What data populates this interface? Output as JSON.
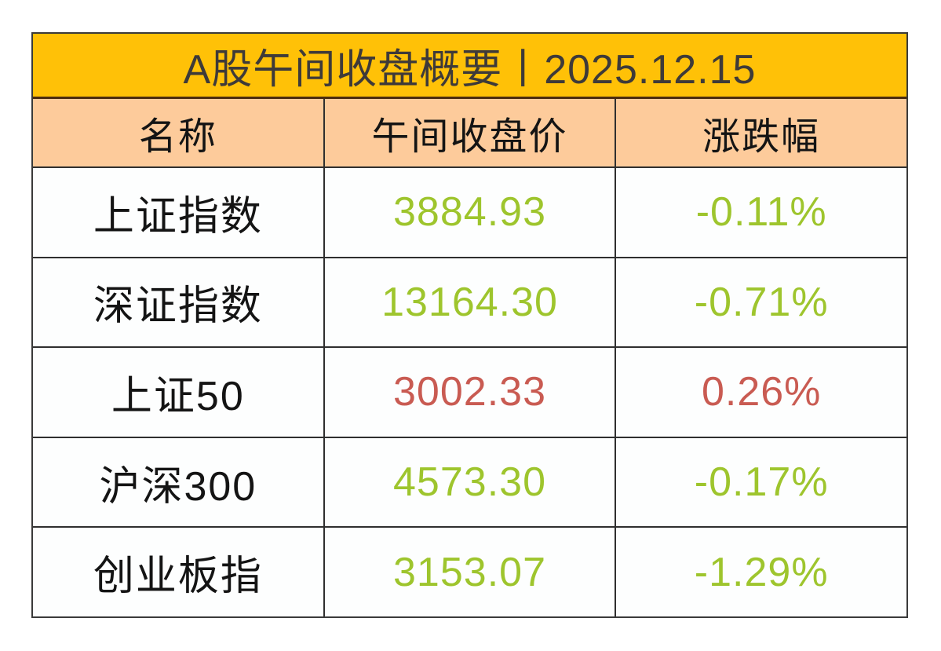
{
  "table": {
    "title": "A股午间收盘概要丨2025.12.15",
    "columns": [
      "名称",
      "午间收盘价",
      "涨跌幅"
    ],
    "rows": [
      {
        "name": "上证指数",
        "price": "3884.93",
        "change": "-0.11%",
        "trend": "down"
      },
      {
        "name": "深证指数",
        "price": "13164.30",
        "change": "-0.71%",
        "trend": "down"
      },
      {
        "name": "上证50",
        "price": "3002.33",
        "change": "0.26%",
        "trend": "up"
      },
      {
        "name": "沪深300",
        "price": "4573.30",
        "change": "-0.17%",
        "trend": "down"
      },
      {
        "name": "创业板指",
        "price": "3153.07",
        "change": "-1.29%",
        "trend": "down"
      }
    ]
  },
  "colors": {
    "title_bg": "#FFC107",
    "header_bg": "#FDCB9B",
    "up": "#C95B52",
    "down": "#9EC52D",
    "title_text": "#3E3A39",
    "body_text": "#141414"
  },
  "chart_data": {
    "type": "table",
    "title": "A股午间收盘概要丨2025.12.15",
    "columns": [
      "名称",
      "午间收盘价",
      "涨跌幅"
    ],
    "rows": [
      [
        "上证指数",
        3884.93,
        "-0.11%"
      ],
      [
        "深证指数",
        13164.3,
        "-0.71%"
      ],
      [
        "上证50",
        3002.33,
        "0.26%"
      ],
      [
        "沪深300",
        4573.3,
        "-0.17%"
      ],
      [
        "创业板指",
        3153.07,
        "-1.29%"
      ]
    ],
    "notes": "up values shown in muted red, down values shown in yellow-green"
  }
}
